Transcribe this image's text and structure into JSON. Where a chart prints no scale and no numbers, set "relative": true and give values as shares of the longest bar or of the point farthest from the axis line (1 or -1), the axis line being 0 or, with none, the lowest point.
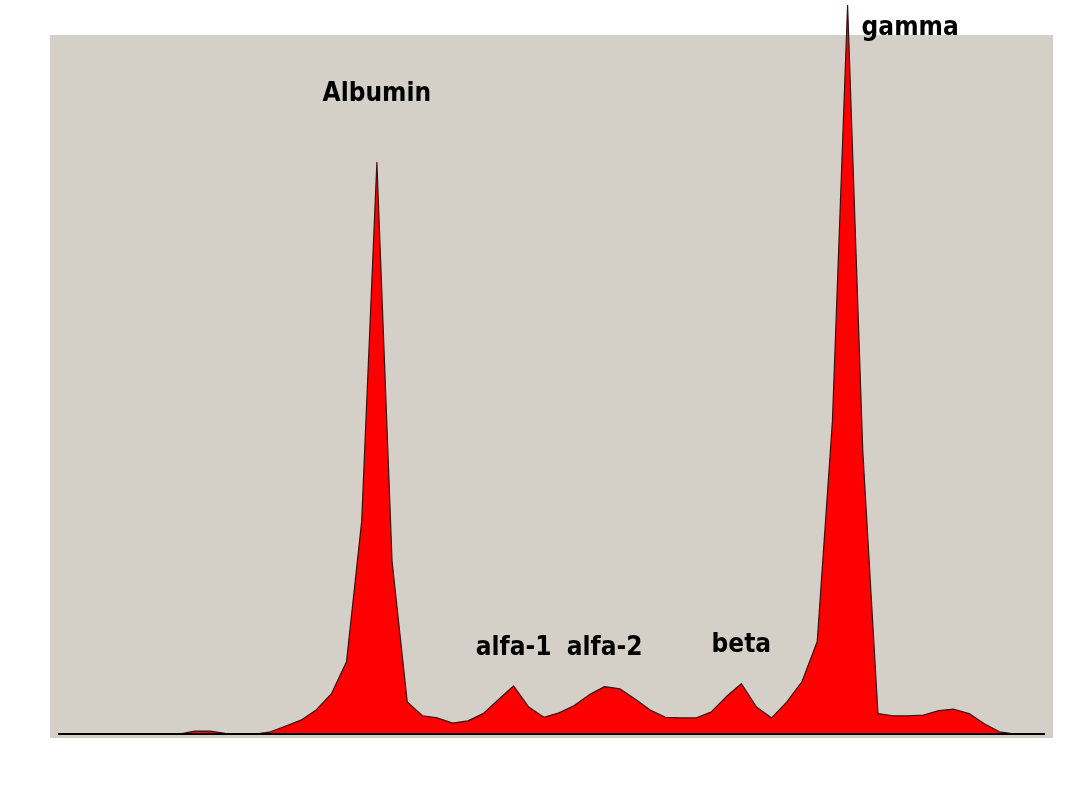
{
  "chart_data": {
    "type": "area",
    "relative": true,
    "categories": [
      null,
      null,
      null,
      null,
      null,
      null,
      null,
      null,
      null,
      null,
      null,
      null,
      null,
      null,
      null,
      null,
      null,
      null,
      null,
      null,
      null,
      null,
      null,
      null,
      null,
      null,
      null,
      null,
      null,
      null,
      null,
      null,
      null,
      null,
      null,
      null,
      null,
      null,
      null,
      null,
      null,
      null,
      null,
      null,
      null,
      null,
      null,
      null,
      null,
      null,
      null,
      null,
      null,
      null,
      null,
      null,
      null,
      null,
      null,
      null,
      null,
      null,
      null,
      null,
      null,
      null
    ],
    "series": [
      {
        "color": "#ff0000",
        "values": [
          0,
          0,
          0,
          0,
          0,
          0,
          0,
          0,
          0,
          0.004,
          0.004,
          0.001,
          0,
          0,
          0.003,
          0.011,
          0.019,
          0.033,
          0.055,
          0.099,
          0.292,
          0.784,
          0.237,
          0.044,
          0.025,
          0.022,
          0.015,
          0.018,
          0.028,
          0.047,
          0.066,
          0.037,
          0.023,
          0.029,
          0.039,
          0.054,
          0.065,
          0.062,
          0.048,
          0.033,
          0.023,
          0.022,
          0.022,
          0.03,
          0.051,
          0.069,
          0.037,
          0.022,
          0.044,
          0.072,
          0.127,
          0.429,
          1,
          0.388,
          0.028,
          0.025,
          0.025,
          0.026,
          0.032,
          0.034,
          0.028,
          0.014,
          0.003,
          0,
          0,
          0
        ]
      }
    ],
    "annotations": [
      "Albumin",
      "alfa-1",
      "alfa-2",
      "beta",
      "gamma"
    ],
    "legend": false
  }
}
